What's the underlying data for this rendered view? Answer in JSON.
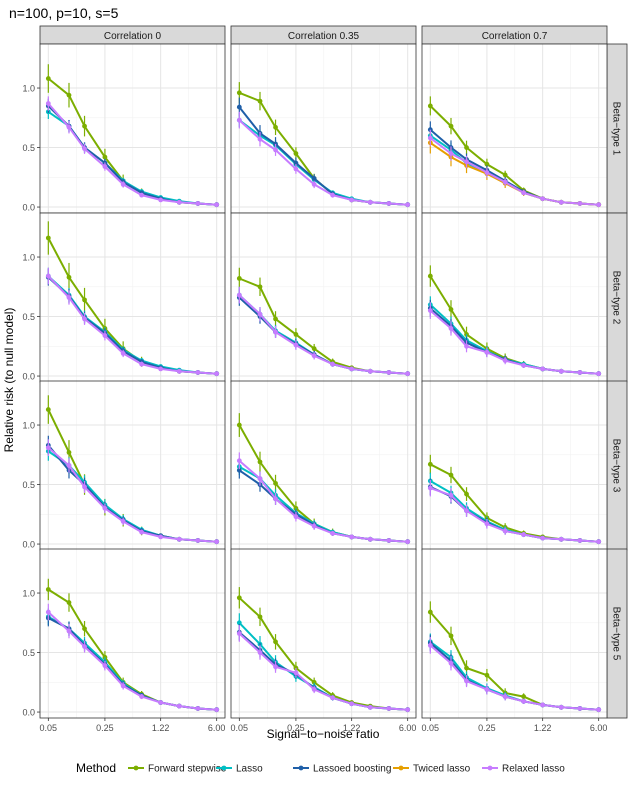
{
  "chart_data": {
    "type": "line",
    "title": "n=100, p=10, s=5",
    "xlabel": "Signal−to−noise ratio",
    "ylabel": "Relative risk (to null model)",
    "x": [
      0.05,
      0.09,
      0.14,
      0.25,
      0.42,
      0.71,
      1.22,
      2.07,
      3.52,
      6.0
    ],
    "x_tick_labels": [
      "0.05",
      "0.25",
      "1.22",
      "6.00"
    ],
    "x_tick_values": [
      0.05,
      0.25,
      1.22,
      6.0
    ],
    "ylim": [
      -0.05,
      1.37
    ],
    "y_ticks": [
      "0.0",
      "0.5",
      "1.0"
    ],
    "y_tick_values": [
      0,
      0.5,
      1.0
    ],
    "columns": [
      "Correlation 0",
      "Correlation 0.35",
      "Correlation 0.7"
    ],
    "rows": [
      "Beta−type 1",
      "Beta−type 2",
      "Beta−type 3",
      "Beta−type 5"
    ],
    "legend": {
      "title": "Method",
      "position": "bottom",
      "items": [
        {
          "name": "Forward stepwise",
          "color": "#7cae00"
        },
        {
          "name": "Lasso",
          "color": "#00bfc4"
        },
        {
          "name": "Lassoed boosting",
          "color": "#1f5fa8"
        },
        {
          "name": "Twiced lasso",
          "color": "#e69f00"
        },
        {
          "name": "Relaxed lasso",
          "color": "#c77cff"
        }
      ]
    },
    "panels": [
      {
        "row": 0,
        "col": 0,
        "series": [
          {
            "name": "Forward stepwise",
            "values": [
              1.08,
              0.94,
              0.68,
              0.42,
              0.22,
              0.12,
              0.07,
              0.04,
              0.03,
              0.02
            ],
            "err": 0.12
          },
          {
            "name": "Lasso",
            "values": [
              0.8,
              0.68,
              0.5,
              0.37,
              0.22,
              0.13,
              0.08,
              0.05,
              0.03,
              0.02
            ],
            "err": 0.06
          },
          {
            "name": "Lassoed boosting",
            "values": [
              0.85,
              0.68,
              0.5,
              0.37,
              0.21,
              0.12,
              0.07,
              0.04,
              0.03,
              0.02
            ],
            "err": 0.06
          },
          {
            "name": "Relaxed lasso",
            "values": [
              0.87,
              0.67,
              0.49,
              0.34,
              0.19,
              0.1,
              0.06,
              0.04,
              0.03,
              0.02
            ],
            "err": 0.06
          }
        ]
      },
      {
        "row": 0,
        "col": 1,
        "series": [
          {
            "name": "Forward stepwise",
            "values": [
              0.96,
              0.89,
              0.67,
              0.45,
              0.24,
              0.11,
              0.06,
              0.04,
              0.03,
              0.02
            ],
            "err": 0.09
          },
          {
            "name": "Lasso",
            "values": [
              0.73,
              0.6,
              0.52,
              0.36,
              0.23,
              0.12,
              0.07,
              0.04,
              0.03,
              0.02
            ],
            "err": 0.06
          },
          {
            "name": "Lassoed boosting",
            "values": [
              0.84,
              0.62,
              0.53,
              0.37,
              0.24,
              0.11,
              0.06,
              0.04,
              0.03,
              0.02
            ],
            "err": 0.08
          },
          {
            "name": "Relaxed lasso",
            "values": [
              0.73,
              0.57,
              0.48,
              0.32,
              0.19,
              0.1,
              0.06,
              0.04,
              0.03,
              0.02
            ],
            "err": 0.07
          }
        ]
      },
      {
        "row": 0,
        "col": 2,
        "series": [
          {
            "name": "Forward stepwise",
            "values": [
              0.85,
              0.68,
              0.5,
              0.36,
              0.27,
              0.14,
              0.07,
              0.04,
              0.03,
              0.02
            ],
            "err": 0.08
          },
          {
            "name": "Lasso",
            "values": [
              0.6,
              0.48,
              0.37,
              0.29,
              0.21,
              0.12,
              0.07,
              0.04,
              0.03,
              0.02
            ],
            "err": 0.07
          },
          {
            "name": "Lassoed boosting",
            "values": [
              0.65,
              0.5,
              0.4,
              0.31,
              0.22,
              0.13,
              0.07,
              0.04,
              0.03,
              0.02
            ],
            "err": 0.07
          },
          {
            "name": "Twiced lasso",
            "values": [
              0.54,
              0.42,
              0.35,
              0.28,
              0.2,
              0.12,
              0.07,
              0.04,
              0.03,
              0.02
            ],
            "err": 0.09
          },
          {
            "name": "Relaxed lasso",
            "values": [
              0.58,
              0.45,
              0.38,
              0.29,
              0.21,
              0.12,
              0.07,
              0.04,
              0.03,
              0.02
            ],
            "err": 0.07
          }
        ]
      },
      {
        "row": 1,
        "col": 0,
        "series": [
          {
            "name": "Forward stepwise",
            "values": [
              1.16,
              0.83,
              0.64,
              0.4,
              0.23,
              0.12,
              0.07,
              0.04,
              0.03,
              0.02
            ],
            "err": 0.14
          },
          {
            "name": "Lasso",
            "values": [
              0.84,
              0.68,
              0.5,
              0.37,
              0.22,
              0.13,
              0.08,
              0.05,
              0.03,
              0.02
            ],
            "err": 0.07
          },
          {
            "name": "Lassoed boosting",
            "values": [
              0.83,
              0.67,
              0.49,
              0.36,
              0.21,
              0.12,
              0.07,
              0.04,
              0.03,
              0.02
            ],
            "err": 0.07
          },
          {
            "name": "Relaxed lasso",
            "values": [
              0.84,
              0.66,
              0.48,
              0.34,
              0.19,
              0.1,
              0.06,
              0.04,
              0.03,
              0.02
            ],
            "err": 0.07
          }
        ]
      },
      {
        "row": 1,
        "col": 1,
        "series": [
          {
            "name": "Forward stepwise",
            "values": [
              0.82,
              0.75,
              0.48,
              0.35,
              0.23,
              0.12,
              0.07,
              0.04,
              0.03,
              0.02
            ],
            "err": 0.09
          },
          {
            "name": "Lasso",
            "values": [
              0.68,
              0.52,
              0.38,
              0.28,
              0.18,
              0.1,
              0.06,
              0.04,
              0.03,
              0.02
            ],
            "err": 0.07
          },
          {
            "name": "Lassoed boosting",
            "values": [
              0.66,
              0.5,
              0.37,
              0.27,
              0.18,
              0.1,
              0.06,
              0.04,
              0.03,
              0.02
            ],
            "err": 0.07
          },
          {
            "name": "Relaxed lasso",
            "values": [
              0.68,
              0.52,
              0.37,
              0.26,
              0.17,
              0.1,
              0.06,
              0.04,
              0.03,
              0.02
            ],
            "err": 0.07
          }
        ]
      },
      {
        "row": 1,
        "col": 2,
        "series": [
          {
            "name": "Forward stepwise",
            "values": [
              0.84,
              0.56,
              0.35,
              0.23,
              0.15,
              0.1,
              0.06,
              0.04,
              0.03,
              0.02
            ],
            "err": 0.09
          },
          {
            "name": "Lasso",
            "values": [
              0.6,
              0.44,
              0.3,
              0.21,
              0.14,
              0.1,
              0.06,
              0.04,
              0.03,
              0.02
            ],
            "err": 0.07
          },
          {
            "name": "Lassoed boosting",
            "values": [
              0.57,
              0.42,
              0.28,
              0.2,
              0.14,
              0.09,
              0.06,
              0.04,
              0.03,
              0.02
            ],
            "err": 0.07
          },
          {
            "name": "Relaxed lasso",
            "values": [
              0.55,
              0.4,
              0.25,
              0.2,
              0.13,
              0.09,
              0.06,
              0.04,
              0.03,
              0.02
            ],
            "err": 0.07
          }
        ]
      },
      {
        "row": 2,
        "col": 0,
        "series": [
          {
            "name": "Forward stepwise",
            "values": [
              1.13,
              0.77,
              0.5,
              0.31,
              0.2,
              0.11,
              0.07,
              0.04,
              0.03,
              0.02
            ],
            "err": 0.12
          },
          {
            "name": "Lasso",
            "values": [
              0.78,
              0.66,
              0.52,
              0.33,
              0.21,
              0.12,
              0.07,
              0.04,
              0.03,
              0.02
            ],
            "err": 0.08
          },
          {
            "name": "Lassoed boosting",
            "values": [
              0.83,
              0.62,
              0.5,
              0.31,
              0.2,
              0.11,
              0.07,
              0.04,
              0.03,
              0.02
            ],
            "err": 0.08
          },
          {
            "name": "Relaxed lasso",
            "values": [
              0.81,
              0.66,
              0.48,
              0.3,
              0.19,
              0.1,
              0.06,
              0.04,
              0.03,
              0.02
            ],
            "err": 0.07
          }
        ]
      },
      {
        "row": 2,
        "col": 1,
        "series": [
          {
            "name": "Forward stepwise",
            "values": [
              1.0,
              0.69,
              0.51,
              0.3,
              0.17,
              0.1,
              0.06,
              0.04,
              0.03,
              0.02
            ],
            "err": 0.1
          },
          {
            "name": "Lasso",
            "values": [
              0.65,
              0.55,
              0.41,
              0.26,
              0.17,
              0.1,
              0.06,
              0.04,
              0.03,
              0.02
            ],
            "err": 0.07
          },
          {
            "name": "Lassoed boosting",
            "values": [
              0.62,
              0.5,
              0.38,
              0.25,
              0.16,
              0.09,
              0.06,
              0.04,
              0.03,
              0.02
            ],
            "err": 0.07
          },
          {
            "name": "Relaxed lasso",
            "values": [
              0.7,
              0.55,
              0.38,
              0.23,
              0.15,
              0.09,
              0.06,
              0.04,
              0.03,
              0.02
            ],
            "err": 0.07
          }
        ]
      },
      {
        "row": 2,
        "col": 2,
        "series": [
          {
            "name": "Forward stepwise",
            "values": [
              0.67,
              0.58,
              0.42,
              0.22,
              0.14,
              0.09,
              0.06,
              0.04,
              0.03,
              0.02
            ],
            "err": 0.08
          },
          {
            "name": "Lasso",
            "values": [
              0.53,
              0.43,
              0.3,
              0.19,
              0.12,
              0.08,
              0.05,
              0.04,
              0.03,
              0.02
            ],
            "err": 0.07
          },
          {
            "name": "Lassoed boosting",
            "values": [
              0.48,
              0.4,
              0.28,
              0.18,
              0.11,
              0.08,
              0.05,
              0.04,
              0.03,
              0.02
            ],
            "err": 0.07
          },
          {
            "name": "Relaxed lasso",
            "values": [
              0.47,
              0.41,
              0.28,
              0.17,
              0.11,
              0.08,
              0.05,
              0.04,
              0.03,
              0.02
            ],
            "err": 0.07
          }
        ]
      },
      {
        "row": 3,
        "col": 0,
        "series": [
          {
            "name": "Forward stepwise",
            "values": [
              1.03,
              0.92,
              0.7,
              0.46,
              0.25,
              0.15,
              0.08,
              0.05,
              0.03,
              0.02
            ],
            "err": 0.09
          },
          {
            "name": "Lasso",
            "values": [
              0.8,
              0.7,
              0.58,
              0.42,
              0.24,
              0.14,
              0.08,
              0.05,
              0.03,
              0.02
            ],
            "err": 0.07
          },
          {
            "name": "Lassoed boosting",
            "values": [
              0.79,
              0.7,
              0.56,
              0.4,
              0.23,
              0.14,
              0.08,
              0.05,
              0.03,
              0.02
            ],
            "err": 0.07
          },
          {
            "name": "Relaxed lasso",
            "values": [
              0.84,
              0.68,
              0.55,
              0.39,
              0.22,
              0.13,
              0.08,
              0.05,
              0.03,
              0.02
            ],
            "err": 0.07
          }
        ]
      },
      {
        "row": 3,
        "col": 1,
        "series": [
          {
            "name": "Forward stepwise",
            "values": [
              0.96,
              0.8,
              0.59,
              0.37,
              0.25,
              0.14,
              0.08,
              0.05,
              0.03,
              0.02
            ],
            "err": 0.09
          },
          {
            "name": "Lasso",
            "values": [
              0.75,
              0.57,
              0.42,
              0.3,
              0.21,
              0.12,
              0.07,
              0.04,
              0.03,
              0.02
            ],
            "err": 0.08
          },
          {
            "name": "Lassoed boosting",
            "values": [
              0.67,
              0.52,
              0.4,
              0.32,
              0.2,
              0.12,
              0.07,
              0.04,
              0.03,
              0.02
            ],
            "err": 0.07
          },
          {
            "name": "Relaxed lasso",
            "values": [
              0.66,
              0.5,
              0.38,
              0.33,
              0.19,
              0.12,
              0.07,
              0.04,
              0.03,
              0.02
            ],
            "err": 0.07
          }
        ]
      },
      {
        "row": 3,
        "col": 2,
        "series": [
          {
            "name": "Forward stepwise",
            "values": [
              0.84,
              0.64,
              0.37,
              0.31,
              0.16,
              0.13,
              0.06,
              0.04,
              0.03,
              0.02
            ],
            "err": 0.09
          },
          {
            "name": "Lasso",
            "values": [
              0.59,
              0.46,
              0.29,
              0.2,
              0.14,
              0.09,
              0.06,
              0.04,
              0.03,
              0.02
            ],
            "err": 0.07
          },
          {
            "name": "Lassoed boosting",
            "values": [
              0.58,
              0.43,
              0.27,
              0.19,
              0.13,
              0.09,
              0.06,
              0.04,
              0.03,
              0.02
            ],
            "err": 0.07
          },
          {
            "name": "Relaxed lasso",
            "values": [
              0.56,
              0.41,
              0.26,
              0.19,
              0.13,
              0.09,
              0.06,
              0.04,
              0.03,
              0.02
            ],
            "err": 0.07
          }
        ]
      }
    ]
  }
}
